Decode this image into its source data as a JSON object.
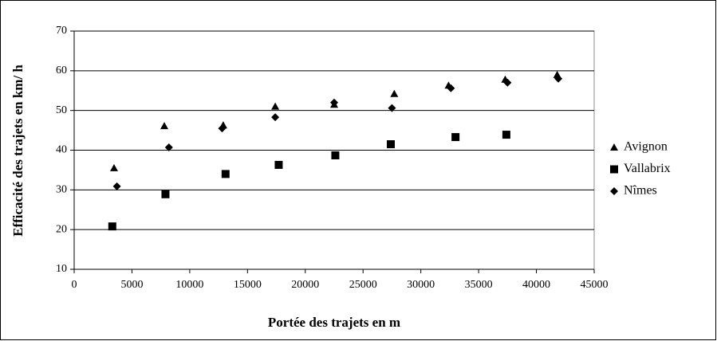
{
  "chart_data": {
    "type": "scatter",
    "xlabel": "Portée des trajets en m",
    "ylabel": "Efficacité des trajets en km/ h",
    "xlim": [
      0,
      45000
    ],
    "xticks": [
      0,
      5000,
      10000,
      15000,
      20000,
      25000,
      30000,
      35000,
      40000,
      45000
    ],
    "ylim": [
      10,
      70
    ],
    "yticks": [
      10,
      20,
      30,
      40,
      50,
      60,
      70
    ],
    "grid": true,
    "legend": "right",
    "series": [
      {
        "name": "Avignon",
        "color": "#000000",
        "marker": "triangle",
        "x": [
          3450,
          7800,
          12900,
          17400,
          22500,
          27700,
          32400,
          37300,
          41800
        ],
        "values": [
          35.5,
          46.1,
          46.3,
          51,
          51.5,
          54.2,
          56.3,
          57.8,
          59
        ]
      },
      {
        "name": "Vallabrix",
        "color": "#000000",
        "marker": "square",
        "x": [
          3300,
          7900,
          13100,
          17700,
          22600,
          27400,
          33000,
          37400
        ],
        "values": [
          20.8,
          28.9,
          34,
          36.3,
          38.7,
          41.5,
          43.3,
          43.9
        ]
      },
      {
        "name": "Nîmes",
        "color": "#000000",
        "marker": "diamond",
        "x": [
          3700,
          8200,
          12800,
          17400,
          22500,
          27500,
          32600,
          37500,
          41900
        ],
        "values": [
          30.9,
          40.7,
          45.5,
          48.3,
          52,
          50.6,
          55.6,
          57,
          58
        ]
      }
    ]
  }
}
